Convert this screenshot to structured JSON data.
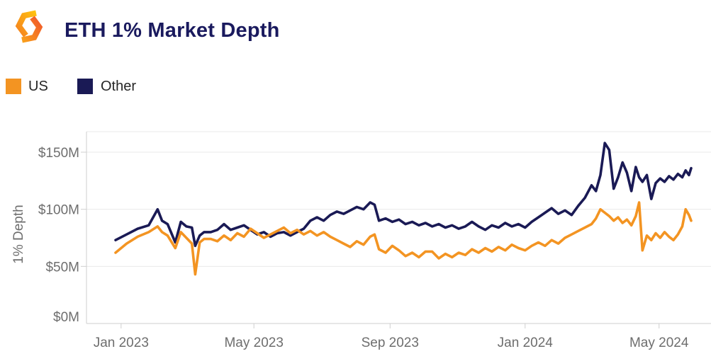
{
  "header": {
    "title": "ETH 1% Market Depth",
    "logo": "kaiko-logo"
  },
  "legend": [
    {
      "label": "US",
      "color": "#F39422"
    },
    {
      "label": "Other",
      "color": "#1A1A55"
    }
  ],
  "colors": {
    "us_line": "#F39422",
    "other_line": "#1A1A55",
    "title_navy": "#1A1A5E",
    "axis_text": "#6E6E6E",
    "gridline": "#EAEAEA",
    "axis_line": "#CFCFCF"
  },
  "chart_data": {
    "type": "line",
    "title": "ETH 1% Market Depth",
    "xlabel": "",
    "ylabel": "1% Depth",
    "grid": true,
    "legend_position": "top-left",
    "ylim": [
      0,
      168
    ],
    "y_unit": "USD millions",
    "y_ticks": [
      {
        "label": "$0M",
        "value": 0
      },
      {
        "label": "$50M",
        "value": 50
      },
      {
        "label": "$100M",
        "value": 100
      },
      {
        "label": "$150M",
        "value": 150
      }
    ],
    "x_domain_days": [
      0,
      520
    ],
    "x_ticks": [
      {
        "label": "Jan 2023",
        "day": 5
      },
      {
        "label": "May 2023",
        "day": 125
      },
      {
        "label": "Sep 2023",
        "day": 248
      },
      {
        "label": "Jan 2024",
        "day": 370
      },
      {
        "label": "May 2024",
        "day": 491
      }
    ],
    "days": [
      0,
      10,
      20,
      30,
      38,
      42,
      47,
      54,
      59,
      64,
      69,
      72,
      76,
      80,
      86,
      92,
      98,
      104,
      110,
      116,
      122,
      128,
      134,
      140,
      146,
      152,
      158,
      164,
      170,
      176,
      182,
      188,
      194,
      200,
      206,
      212,
      218,
      224,
      230,
      234,
      238,
      244,
      250,
      256,
      262,
      268,
      274,
      280,
      286,
      292,
      298,
      304,
      310,
      316,
      322,
      328,
      334,
      340,
      346,
      352,
      358,
      364,
      370,
      376,
      382,
      388,
      394,
      400,
      406,
      412,
      418,
      424,
      430,
      434,
      438,
      442,
      446,
      450,
      454,
      458,
      462,
      466,
      470,
      473,
      476,
      480,
      484,
      488,
      492,
      496,
      500,
      504,
      508,
      512,
      515,
      518,
      520
    ],
    "series": [
      {
        "name": "US",
        "color": "#F39422",
        "values": [
          62,
          70,
          76,
          80,
          85,
          80,
          77,
          66,
          80,
          75,
          70,
          43,
          71,
          74,
          74,
          72,
          77,
          73,
          79,
          76,
          83,
          79,
          75,
          78,
          81,
          84,
          79,
          82,
          78,
          81,
          77,
          80,
          76,
          73,
          70,
          67,
          72,
          69,
          76,
          78,
          65,
          62,
          68,
          64,
          59,
          62,
          58,
          63,
          63,
          57,
          61,
          58,
          62,
          60,
          65,
          62,
          66,
          63,
          67,
          64,
          69,
          66,
          64,
          68,
          71,
          68,
          73,
          70,
          75,
          78,
          81,
          84,
          87,
          92,
          100,
          97,
          94,
          90,
          93,
          88,
          91,
          86,
          94,
          106,
          64,
          77,
          73,
          79,
          75,
          80,
          76,
          73,
          78,
          85,
          100,
          95,
          90
        ]
      },
      {
        "name": "Other",
        "color": "#1A1A55",
        "values": [
          73,
          78,
          83,
          86,
          100,
          90,
          87,
          71,
          89,
          85,
          84,
          68,
          77,
          80,
          80,
          82,
          87,
          82,
          84,
          86,
          82,
          78,
          80,
          76,
          79,
          80,
          77,
          80,
          83,
          90,
          93,
          90,
          95,
          98,
          96,
          99,
          102,
          100,
          106,
          104,
          90,
          92,
          89,
          91,
          87,
          89,
          86,
          88,
          85,
          87,
          84,
          86,
          83,
          85,
          89,
          85,
          82,
          86,
          84,
          88,
          85,
          87,
          84,
          89,
          93,
          97,
          101,
          96,
          99,
          95,
          103,
          110,
          121,
          116,
          130,
          158,
          152,
          118,
          128,
          141,
          132,
          116,
          137,
          128,
          124,
          130,
          109,
          123,
          127,
          124,
          129,
          126,
          131,
          128,
          134,
          130,
          136
        ]
      }
    ]
  }
}
